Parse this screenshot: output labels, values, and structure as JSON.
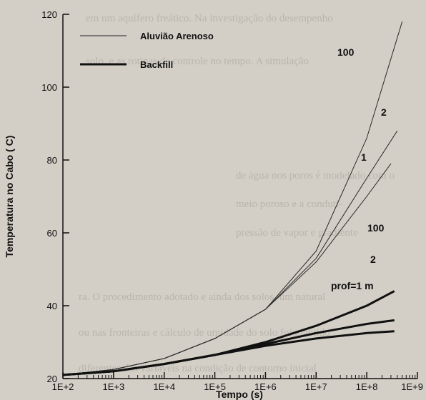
{
  "chart_data": {
    "type": "line",
    "title": "",
    "xlabel": "Tempo (s)",
    "ylabel": "Temperatura no Cabo ( C)",
    "x_scale": "log",
    "x_ticks": [
      "1E+2",
      "1E+3",
      "1E+4",
      "1E+5",
      "1E+6",
      "1E+7",
      "1E+8",
      "1E+9"
    ],
    "y_ticks": [
      "20",
      "40",
      "60",
      "80",
      "100",
      "120"
    ],
    "xlim": [
      100,
      1000000000
    ],
    "ylim": [
      20,
      120
    ],
    "grid": false,
    "legend_position": "top-left",
    "legend": [
      {
        "label": "Aluvião Arenoso",
        "style": "thin"
      },
      {
        "label": "Backfill",
        "style": "thick"
      }
    ],
    "annotations": [
      "100",
      "2",
      "1",
      "100",
      "2",
      "prof=1 m"
    ],
    "series": [
      {
        "group": "Aluvião Arenoso",
        "style": "thin",
        "x": [
          100,
          1000,
          10000,
          100000,
          1000000,
          10000000,
          100000000,
          500000000
        ],
        "y": [
          21,
          22.5,
          25.5,
          31,
          39,
          55,
          86,
          118
        ]
      },
      {
        "group": "Aluvião Arenoso",
        "style": "thin",
        "x": [
          100,
          1000,
          10000,
          100000,
          1000000,
          10000000,
          100000000,
          400000000
        ],
        "y": [
          21,
          22.5,
          25.5,
          31,
          39,
          53,
          75,
          88
        ]
      },
      {
        "group": "Aluvião Arenoso",
        "style": "thin",
        "x": [
          100,
          1000,
          10000,
          100000,
          1000000,
          10000000,
          100000000,
          300000000
        ],
        "y": [
          21,
          22.5,
          25.5,
          31,
          39,
          52,
          70,
          79
        ]
      },
      {
        "group": "Backfill",
        "style": "thick",
        "x": [
          100,
          1000,
          10000,
          100000,
          1000000,
          10000000,
          100000000,
          350000000
        ],
        "y": [
          21,
          22,
          24,
          26.5,
          30,
          34.5,
          40,
          44
        ]
      },
      {
        "group": "Backfill",
        "style": "thick",
        "x": [
          100,
          1000,
          10000,
          100000,
          1000000,
          10000000,
          100000000,
          350000000
        ],
        "y": [
          21,
          22,
          24,
          26.5,
          29.5,
          32.5,
          35,
          36
        ]
      },
      {
        "group": "Backfill",
        "style": "thick",
        "x": [
          100,
          1000,
          10000,
          100000,
          1000000,
          10000000,
          100000000,
          350000000
        ],
        "y": [
          21,
          22,
          24,
          26.5,
          29,
          31,
          32.5,
          33
        ]
      }
    ]
  }
}
